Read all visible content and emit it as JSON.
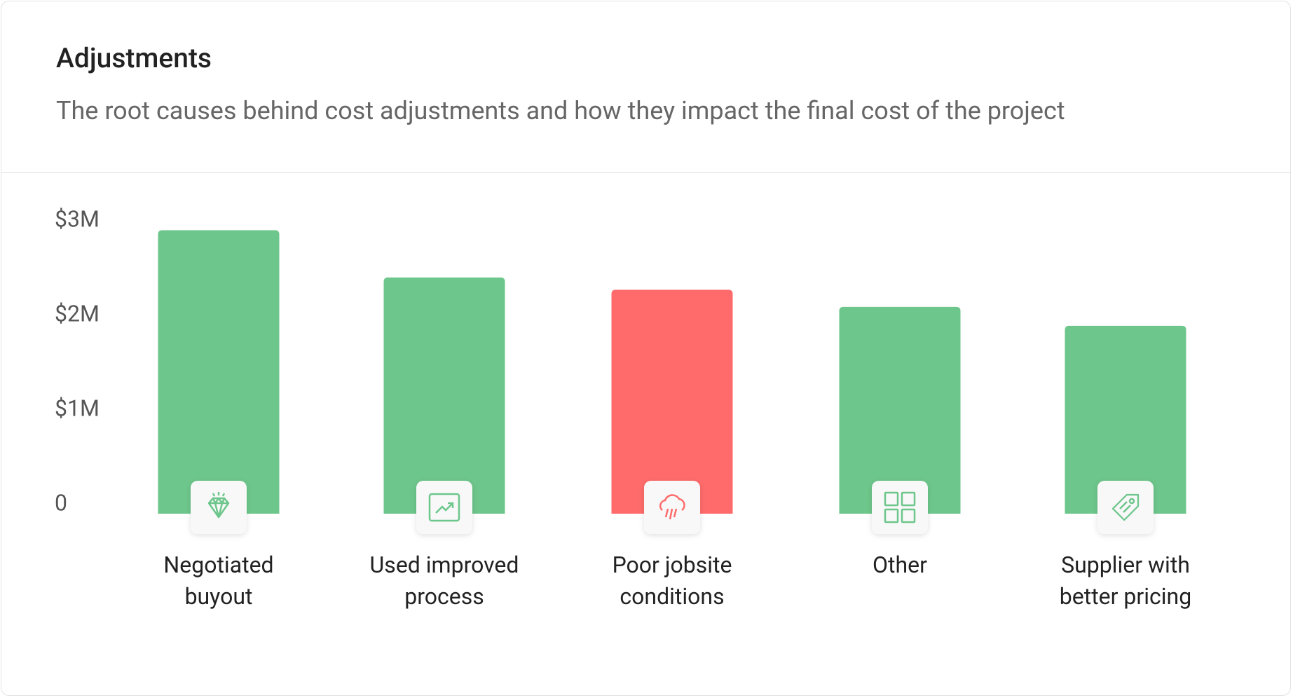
{
  "header": {
    "title": "Adjustments",
    "subtitle": "The root causes behind cost adjustments and how they impact the final cost of the project"
  },
  "chart_data": {
    "type": "bar",
    "categories": [
      "Negotiated buyout",
      "Used improved process",
      "Poor jobsite conditions",
      "Other",
      "Supplier with better pricing"
    ],
    "values": [
      2900000,
      2400000,
      2270000,
      2090000,
      1890000
    ],
    "colors": [
      "#6dc68b",
      "#6dc68b",
      "#ff6b6b",
      "#6dc68b",
      "#6dc68b"
    ],
    "ylim": [
      0,
      3000000
    ],
    "yticks": [
      0,
      {
        "value": 1000000,
        "label": "$1M"
      },
      {
        "value": 2000000,
        "label": "$2M"
      },
      {
        "value": 3000000,
        "label": "$3M"
      }
    ],
    "grid": false
  }
}
